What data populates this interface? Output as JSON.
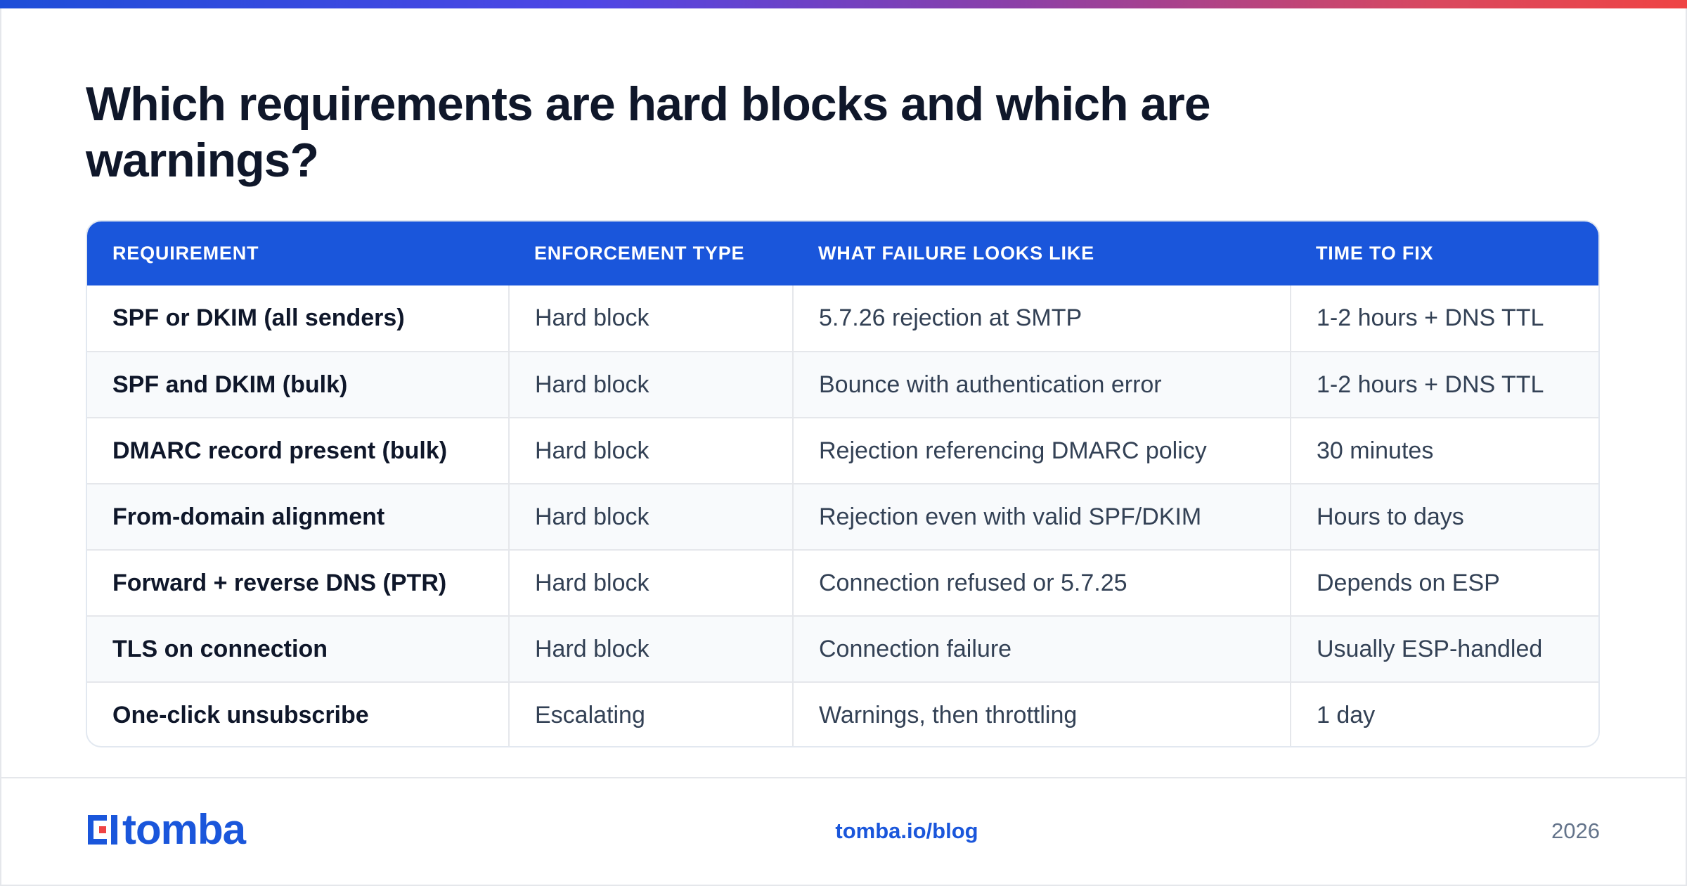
{
  "header": {
    "title": "Which requirements are hard blocks and which are warnings?"
  },
  "table": {
    "columns": [
      "REQUIREMENT",
      "ENFORCEMENT TYPE",
      "WHAT FAILURE LOOKS LIKE",
      "TIME TO FIX"
    ],
    "rows": [
      [
        "SPF or DKIM (all senders)",
        "Hard block",
        "5.7.26 rejection at SMTP",
        "1-2 hours + DNS TTL"
      ],
      [
        "SPF and DKIM (bulk)",
        "Hard block",
        "Bounce with authentication error",
        "1-2 hours + DNS TTL"
      ],
      [
        "DMARC record present (bulk)",
        "Hard block",
        "Rejection referencing DMARC policy",
        "30 minutes"
      ],
      [
        "From-domain alignment",
        "Hard block",
        "Rejection even with valid SPF/DKIM",
        "Hours to days"
      ],
      [
        "Forward + reverse DNS (PTR)",
        "Hard block",
        "Connection refused or 5.7.25",
        "Depends on ESP"
      ],
      [
        "TLS on connection",
        "Hard block",
        "Connection failure",
        "Usually ESP-handled"
      ],
      [
        "One-click unsubscribe",
        "Escalating",
        "Warnings, then throttling",
        "1 day"
      ]
    ]
  },
  "footer": {
    "logo_text": "tomba",
    "link": "tomba.io/blog",
    "year": "2026"
  },
  "colors": {
    "brand_blue": "#1a56db",
    "title_text": "#0f172a",
    "body_text": "#334155",
    "accent_red": "#ef4444"
  },
  "icons": {
    "logo": "tomba-logo-icon"
  }
}
